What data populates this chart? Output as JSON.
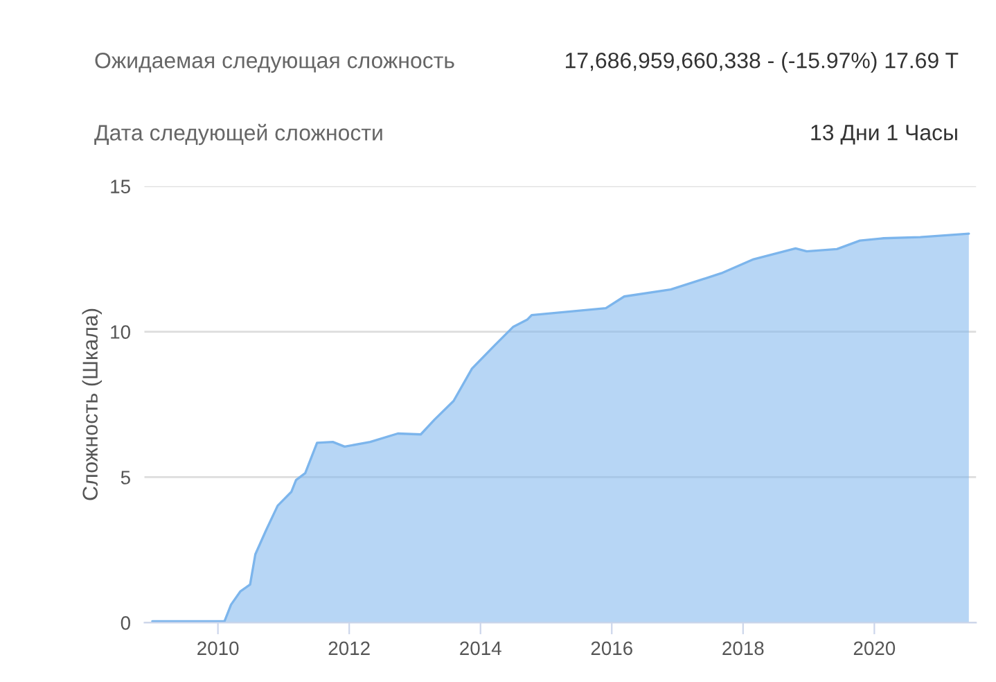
{
  "chart_data": {
    "type": "area",
    "ylabel": "Сложность (Шкала)",
    "annotations": [
      "Ожидаемая следующая сложность",
      "17,686,959,660,338 - (-15.97%) 17.69 T",
      "Дата следующей сложности",
      "13 Дни 1 Часы"
    ],
    "x": [
      2009.0,
      2010.1,
      2010.2,
      2010.34,
      2010.49,
      2010.57,
      2010.73,
      2010.91,
      2011.12,
      2011.19,
      2011.33,
      2011.51,
      2011.75,
      2011.93,
      2012.32,
      2012.74,
      2013.09,
      2013.3,
      2013.59,
      2013.87,
      2014.22,
      2014.5,
      2014.71,
      2014.78,
      2015.91,
      2016.19,
      2016.9,
      2017.67,
      2018.16,
      2018.8,
      2018.97,
      2019.43,
      2019.78,
      2020.14,
      2020.7,
      2021.44
    ],
    "series": [
      {
        "color": "#7cb5ec",
        "values": [
          0.05,
          0.05,
          0.62,
          1.07,
          1.31,
          2.35,
          3.16,
          4.02,
          4.5,
          4.9,
          5.14,
          6.18,
          6.21,
          6.05,
          6.21,
          6.5,
          6.47,
          6.98,
          7.62,
          8.73,
          9.54,
          10.17,
          10.41,
          10.57,
          10.81,
          11.21,
          11.45,
          12.01,
          12.49,
          12.86,
          12.76,
          12.84,
          13.13,
          13.21,
          13.25,
          13.37
        ]
      }
    ],
    "xlim": [
      2008.88,
      2021.55
    ],
    "xticks": [
      2010,
      2012,
      2014,
      2016,
      2018,
      2020
    ],
    "ylim": [
      0,
      15
    ],
    "yticks": [
      0,
      5,
      10,
      15
    ],
    "grid": "y",
    "marker": "none",
    "line_style": "solid"
  }
}
